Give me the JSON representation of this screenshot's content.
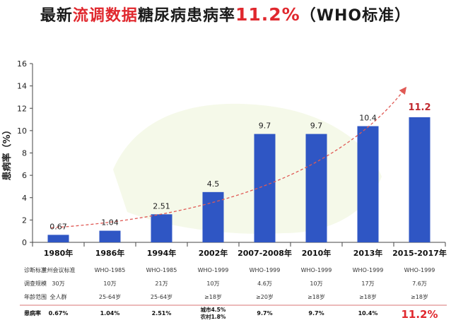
{
  "title": {
    "part1": "最新",
    "part2": "流调数据",
    "part3": "糖尿病患病率",
    "rate": "11.2%",
    "part4": "（WHO标准）",
    "accent_color": "#e0282e"
  },
  "chart_data": {
    "type": "bar",
    "categories": [
      "1980年",
      "1986年",
      "1994年",
      "2002年",
      "2007-2008年",
      "2010年",
      "2013年",
      "2015-2017年"
    ],
    "values": [
      0.67,
      1.04,
      2.51,
      4.5,
      9.7,
      9.7,
      10.4,
      11.2
    ],
    "value_labels": [
      "0.67",
      "1.04",
      "2.51",
      "4.5",
      "9.7",
      "9.7",
      "10.4",
      "11.2"
    ],
    "ylabel": "患病率（%）",
    "ylim": [
      0,
      16
    ],
    "yticks": [
      0,
      2,
      4,
      6,
      8,
      10,
      12,
      14,
      16
    ],
    "bar_color": "#2f56c4",
    "highlight_label_color": "#c0282e",
    "trend_arrow": true
  },
  "table": {
    "rows": [
      {
        "label": "诊断标准",
        "values": [
          "兰州会议标准",
          "WHO-1985",
          "WHO-1985",
          "WHO-1999",
          "WHO-1999",
          "WHO-1999",
          "WHO-1999",
          "WHO-1999"
        ]
      },
      {
        "label": "调查规模",
        "values": [
          "30万",
          "10万",
          "21万",
          "10万",
          "4.6万",
          "10万",
          "17万",
          "7.6万"
        ]
      },
      {
        "label": "年龄范围",
        "values": [
          "全人群",
          "25-64岁",
          "25-64岁",
          "≥18岁",
          "≥20岁",
          "≥18岁",
          "≥18岁",
          "≥18岁"
        ]
      }
    ],
    "prevalence": {
      "label": "患病率",
      "values": [
        "0.67%",
        "1.04%",
        "2.51%",
        "",
        "9.7%",
        "9.7%",
        "10.4%",
        "11.2%"
      ],
      "split_2002": [
        "城市4.5%",
        "农村1.8%"
      ]
    }
  }
}
